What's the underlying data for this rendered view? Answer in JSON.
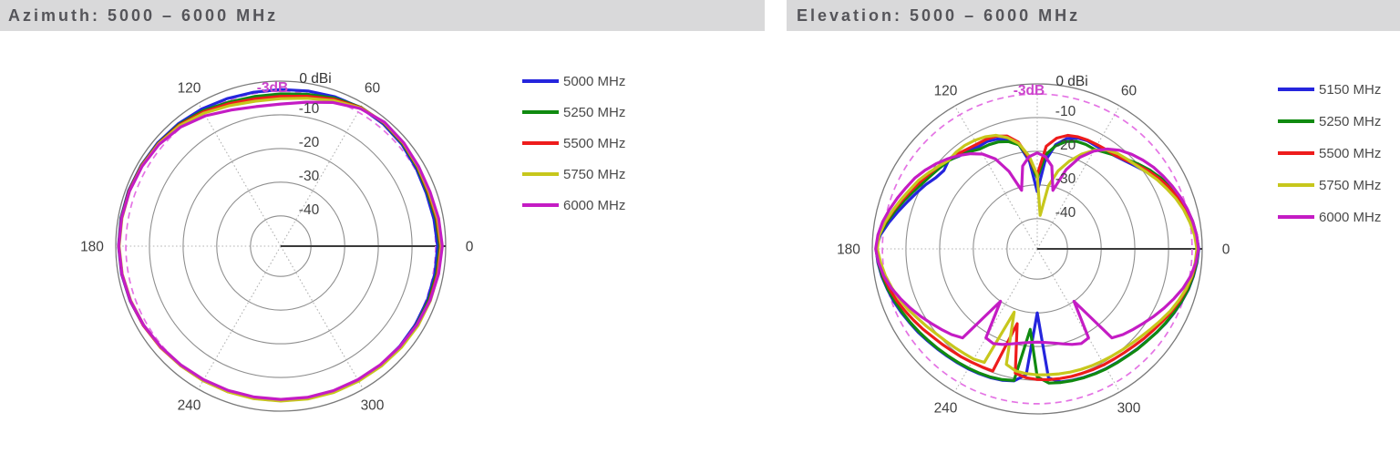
{
  "page": {
    "background": "#ffffff",
    "titlebar_bg": "#d9d9da",
    "titlebar_text_color": "#55555a"
  },
  "chart_data": [
    {
      "type": "polar-line",
      "title": "Azimuth: 5000 – 6000 MHz",
      "units": "dBi",
      "outer_ring_label": "0 dBi",
      "radial_ticks_db": [
        0,
        -10,
        -20,
        -30,
        -40
      ],
      "radial_tick_labels": [
        "-10",
        "-20",
        "-30",
        "-40"
      ],
      "r_min_db": -49,
      "angle_labels_deg": [
        0,
        60,
        120,
        180,
        240,
        300
      ],
      "angle_direction": "counterclockwise",
      "angle_step_deg": 10,
      "threshold": {
        "label": "-3dB",
        "db": -3,
        "color": "#e473e4",
        "label_color": "#cc44cc",
        "style": "dashed"
      },
      "grid": {
        "ring_color": "#8f8f8f",
        "outer_ring_color": "#7a7a7a",
        "spoke_color": "#b3b3b3",
        "axis_color": "#3a3a3a",
        "label_color": "#3f3f3f",
        "vertical_spoke": false
      },
      "legend_position": "right",
      "series": [
        {
          "name": "5000 MHz",
          "color": "#2525dd",
          "db": [
            -2.4,
            -2.8,
            -3.0,
            -2.6,
            -2.0,
            -1.6,
            -1.5,
            -1.8,
            -2.2,
            -2.5,
            -2.6,
            -2.4,
            -2.0,
            -1.6,
            -1.3,
            -1.1,
            -0.9,
            -0.8,
            -0.8,
            -1.0,
            -1.4,
            -1.9,
            -2.4,
            -2.8,
            -3.0,
            -3.2,
            -3.3,
            -3.3,
            -3.2,
            -3.1,
            -3.0,
            -2.9,
            -2.8,
            -2.7,
            -2.6,
            -2.5,
            -2.4
          ]
        },
        {
          "name": "5250 MHz",
          "color": "#108a10",
          "db": [
            -1.8,
            -2.2,
            -2.6,
            -2.2,
            -1.7,
            -1.3,
            -1.4,
            -2.2,
            -3.2,
            -3.8,
            -3.9,
            -3.5,
            -2.6,
            -1.9,
            -1.5,
            -1.2,
            -1.0,
            -0.9,
            -0.9,
            -1.1,
            -1.5,
            -2.0,
            -2.4,
            -2.8,
            -3.0,
            -3.1,
            -3.2,
            -3.2,
            -3.1,
            -3.0,
            -2.9,
            -2.8,
            -2.6,
            -2.4,
            -2.2,
            -2.0,
            -1.8
          ]
        },
        {
          "name": "5500 MHz",
          "color": "#ee1c1c",
          "db": [
            -1.5,
            -1.9,
            -2.3,
            -2.0,
            -1.5,
            -1.2,
            -1.5,
            -2.6,
            -3.8,
            -4.5,
            -4.6,
            -4.0,
            -3.0,
            -2.1,
            -1.6,
            -1.3,
            -1.1,
            -1.0,
            -0.9,
            -1.1,
            -1.5,
            -1.9,
            -2.3,
            -2.7,
            -2.9,
            -3.0,
            -3.1,
            -3.1,
            -3.0,
            -2.9,
            -2.8,
            -2.6,
            -2.4,
            -2.1,
            -1.9,
            -1.7,
            -1.5
          ]
        },
        {
          "name": "5750 MHz",
          "color": "#c7c71c",
          "db": [
            -1.3,
            -1.7,
            -2.1,
            -1.9,
            -1.4,
            -1.1,
            -1.6,
            -3.0,
            -4.4,
            -5.2,
            -5.3,
            -4.6,
            -3.4,
            -2.3,
            -1.7,
            -1.4,
            -1.2,
            -1.1,
            -1.0,
            -1.2,
            -1.6,
            -2.0,
            -2.4,
            -2.7,
            -2.9,
            -3.0,
            -3.0,
            -3.0,
            -2.9,
            -2.8,
            -2.7,
            -2.5,
            -2.2,
            -1.9,
            -1.7,
            -1.5,
            -1.3
          ]
        },
        {
          "name": "6000 MHz",
          "color": "#c41cc4",
          "db": [
            -1.0,
            -1.4,
            -1.8,
            -1.7,
            -1.3,
            -1.0,
            -1.8,
            -3.6,
            -5.6,
            -6.8,
            -6.9,
            -6.0,
            -4.3,
            -2.8,
            -1.9,
            -1.5,
            -1.2,
            -1.0,
            -0.9,
            -1.1,
            -1.5,
            -2.0,
            -2.5,
            -2.9,
            -3.2,
            -3.4,
            -3.5,
            -3.5,
            -3.4,
            -3.3,
            -3.2,
            -3.0,
            -2.7,
            -2.3,
            -1.8,
            -1.4,
            -1.0
          ]
        }
      ]
    },
    {
      "type": "polar-line",
      "title": "Elevation: 5000 – 6000 MHz",
      "units": "dBi",
      "outer_ring_label": "0 dBi",
      "radial_ticks_db": [
        0,
        -10,
        -20,
        -30,
        -40
      ],
      "radial_tick_labels": [
        "-10",
        "-20",
        "-30",
        "-40"
      ],
      "r_min_db": -49,
      "angle_labels_deg": [
        0,
        60,
        120,
        180,
        240,
        300
      ],
      "angle_direction": "counterclockwise",
      "angle_step_deg": 5,
      "threshold": {
        "label": "-3dB",
        "db": -3,
        "color": "#e473e4",
        "label_color": "#cc44cc",
        "style": "dashed"
      },
      "grid": {
        "ring_color": "#8f8f8f",
        "outer_ring_color": "#7a7a7a",
        "spoke_color": "#b3b3b3",
        "axis_color": "#3a3a3a",
        "label_color": "#3f3f3f",
        "vertical_spoke": true
      },
      "legend_position": "right",
      "series": [
        {
          "name": "5150 MHz",
          "color": "#2525dd",
          "db": [
            -1.0,
            -1.6,
            -2.4,
            -3.4,
            -4.6,
            -6.0,
            -7.6,
            -9.2,
            -10.8,
            -12.1,
            -13.0,
            -13.5,
            -13.8,
            -13.6,
            -14.0,
            -15.1,
            -17.6,
            -23.0,
            -32.0,
            -23.0,
            -17.6,
            -15.4,
            -14.3,
            -13.8,
            -14.0,
            -13.4,
            -13.0,
            -11.8,
            -12.8,
            -12.2,
            -10.8,
            -9.5,
            -8.0,
            -6.2,
            -4.2,
            -2.2,
            -1.1,
            -1.5,
            -2.1,
            -2.9,
            -3.6,
            -4.4,
            -5.2,
            -5.8,
            -6.5,
            -7.0,
            -7.4,
            -7.7,
            -7.9,
            -8.1,
            -8.3,
            -8.6,
            -9.2,
            -11.5,
            -30.0,
            -10.5,
            -8.9,
            -8.6,
            -8.4,
            -8.2,
            -8.0,
            -7.8,
            -7.5,
            -7.0,
            -6.5,
            -5.7,
            -4.9,
            -4.1,
            -3.3,
            -2.5,
            -1.9,
            -1.4,
            -1.0
          ]
        },
        {
          "name": "5250 MHz",
          "color": "#108a10",
          "db": [
            -1.1,
            -1.5,
            -2.1,
            -3.0,
            -4.1,
            -5.3,
            -6.7,
            -8.2,
            -9.8,
            -11.4,
            -12.8,
            -14.0,
            -14.9,
            -14.8,
            -15.0,
            -16.0,
            -18.0,
            -21.0,
            -28.0,
            -22.0,
            -17.6,
            -16.0,
            -15.2,
            -14.9,
            -14.8,
            -13.8,
            -12.8,
            -11.9,
            -11.4,
            -10.7,
            -9.8,
            -8.5,
            -7.0,
            -5.3,
            -3.6,
            -1.9,
            -1.1,
            -1.6,
            -2.3,
            -3.0,
            -3.9,
            -4.7,
            -5.4,
            -6.1,
            -6.7,
            -7.2,
            -7.6,
            -7.9,
            -8.1,
            -8.3,
            -8.5,
            -8.8,
            -9.3,
            -25.0,
            -11.0,
            -9.0,
            -8.7,
            -8.5,
            -8.3,
            -8.1,
            -7.9,
            -7.7,
            -7.4,
            -6.9,
            -6.4,
            -5.7,
            -5.0,
            -4.2,
            -3.4,
            -2.6,
            -2.0,
            -1.5,
            -1.1
          ]
        },
        {
          "name": "5500 MHz",
          "color": "#ee1c1c",
          "db": [
            -1.3,
            -1.7,
            -2.5,
            -3.4,
            -4.6,
            -5.8,
            -7.2,
            -8.7,
            -10.3,
            -11.8,
            -12.8,
            -13.1,
            -13.3,
            -13.4,
            -13.6,
            -14.1,
            -15.6,
            -18.4,
            -27.0,
            -22.0,
            -16.8,
            -14.3,
            -13.4,
            -13.1,
            -13.1,
            -12.8,
            -12.2,
            -11.4,
            -10.8,
            -10.0,
            -9.0,
            -7.8,
            -6.4,
            -4.8,
            -3.2,
            -1.8,
            -1.3,
            -1.9,
            -2.6,
            -3.5,
            -4.5,
            -5.6,
            -6.6,
            -7.5,
            -8.4,
            -9.0,
            -9.5,
            -9.8,
            -10.1,
            -10.3,
            -10.4,
            -26.0,
            -11.5,
            -10.6,
            -10.2,
            -10.0,
            -9.9,
            -9.8,
            -9.7,
            -9.5,
            -9.3,
            -9.1,
            -8.8,
            -8.3,
            -7.6,
            -6.9,
            -6.0,
            -5.0,
            -4.0,
            -3.1,
            -2.3,
            -1.7,
            -1.3
          ]
        },
        {
          "name": "5750 MHz",
          "color": "#c7c71c",
          "db": [
            -1.6,
            -2.1,
            -3.0,
            -4.0,
            -5.2,
            -6.6,
            -7.9,
            -9.3,
            -10.5,
            -11.3,
            -12.0,
            -13.1,
            -15.2,
            -18.0,
            -21.3,
            -25.0,
            -30.0,
            -39.0,
            -27.0,
            -21.3,
            -17.2,
            -14.8,
            -13.1,
            -12.3,
            -11.8,
            -11.5,
            -11.5,
            -11.8,
            -10.8,
            -9.6,
            -8.3,
            -7.3,
            -6.0,
            -4.6,
            -3.1,
            -1.9,
            -1.5,
            -2.3,
            -3.2,
            -4.3,
            -5.4,
            -6.6,
            -7.9,
            -8.9,
            -9.8,
            -10.4,
            -10.8,
            -11.1,
            -11.2,
            -11.8,
            -29.0,
            -13.5,
            -12.2,
            -11.8,
            -11.6,
            -11.5,
            -11.3,
            -11.1,
            -10.9,
            -10.7,
            -10.5,
            -10.2,
            -9.8,
            -9.3,
            -8.6,
            -7.7,
            -6.6,
            -5.4,
            -4.3,
            -3.2,
            -2.4,
            -1.9,
            -1.6
          ]
        },
        {
          "name": "6000 MHz",
          "color": "#c41cc4",
          "db": [
            -1.1,
            -1.5,
            -2.1,
            -2.9,
            -3.8,
            -4.8,
            -5.8,
            -6.8,
            -8.0,
            -9.3,
            -10.8,
            -12.8,
            -15.5,
            -19.0,
            -24.0,
            -31.0,
            -24.0,
            -21.5,
            -20.5,
            -21.5,
            -24.0,
            -31.0,
            -24.5,
            -19.5,
            -16.5,
            -14.5,
            -12.8,
            -11.2,
            -9.7,
            -8.3,
            -7.0,
            -6.0,
            -4.8,
            -3.6,
            -2.4,
            -1.5,
            -1.0,
            -1.7,
            -2.7,
            -4.1,
            -5.8,
            -7.4,
            -9.0,
            -10.5,
            -11.8,
            -13.0,
            -14.5,
            -30.0,
            -18.5,
            -18.0,
            -18.8,
            -19.8,
            -20.6,
            -21.1,
            -21.3,
            -21.1,
            -20.6,
            -19.8,
            -18.8,
            -18.0,
            -18.5,
            -30.0,
            -14.5,
            -13.0,
            -11.8,
            -10.5,
            -9.0,
            -7.4,
            -5.8,
            -4.1,
            -2.7,
            -1.7,
            -1.1
          ]
        }
      ]
    }
  ]
}
